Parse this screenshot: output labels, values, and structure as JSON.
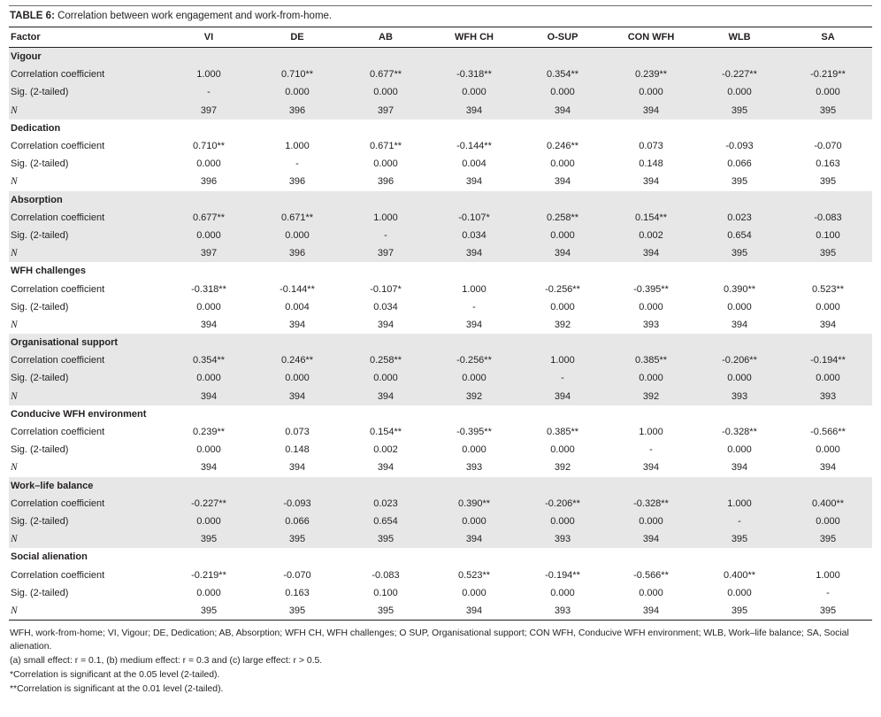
{
  "table": {
    "label": "TABLE 6:",
    "title": "Correlation between work engagement and work-from-home.",
    "columns": [
      "Factor",
      "VI",
      "DE",
      "AB",
      "WFH CH",
      "O-SUP",
      "CON WFH",
      "WLB",
      "SA"
    ],
    "sections": [
      {
        "name": "Vigour",
        "shaded": true,
        "rows": [
          {
            "label": "Correlation coefficient",
            "values": [
              "1.000",
              "0.710**",
              "0.677**",
              "-0.318**",
              "0.354**",
              "0.239**",
              "-0.227**",
              "-0.219**"
            ]
          },
          {
            "label": "Sig. (2-tailed)",
            "values": [
              "-",
              "0.000",
              "0.000",
              "0.000",
              "0.000",
              "0.000",
              "0.000",
              "0.000"
            ]
          },
          {
            "label": "N",
            "values": [
              "397",
              "396",
              "397",
              "394",
              "394",
              "394",
              "395",
              "395"
            ]
          }
        ]
      },
      {
        "name": "Dedication",
        "shaded": false,
        "rows": [
          {
            "label": "Correlation coefficient",
            "values": [
              "0.710**",
              "1.000",
              "0.671**",
              "-0.144**",
              "0.246**",
              "0.073",
              "-0.093",
              "-0.070"
            ]
          },
          {
            "label": "Sig. (2-tailed)",
            "values": [
              "0.000",
              "-",
              "0.000",
              "0.004",
              "0.000",
              "0.148",
              "0.066",
              "0.163"
            ]
          },
          {
            "label": "N",
            "values": [
              "396",
              "396",
              "396",
              "394",
              "394",
              "394",
              "395",
              "395"
            ]
          }
        ]
      },
      {
        "name": "Absorption",
        "shaded": true,
        "rows": [
          {
            "label": "Correlation coefficient",
            "values": [
              "0.677**",
              "0.671**",
              "1.000",
              "-0.107*",
              "0.258**",
              "0.154**",
              "0.023",
              "-0.083"
            ]
          },
          {
            "label": "Sig. (2-tailed)",
            "values": [
              "0.000",
              "0.000",
              "-",
              "0.034",
              "0.000",
              "0.002",
              "0.654",
              "0.100"
            ]
          },
          {
            "label": "N",
            "values": [
              "397",
              "396",
              "397",
              "394",
              "394",
              "394",
              "395",
              "395"
            ]
          }
        ]
      },
      {
        "name": "WFH challenges",
        "shaded": false,
        "rows": [
          {
            "label": "Correlation coefficient",
            "values": [
              "-0.318**",
              "-0.144**",
              "-0.107*",
              "1.000",
              "-0.256**",
              "-0.395**",
              "0.390**",
              "0.523**"
            ]
          },
          {
            "label": "Sig. (2-tailed)",
            "values": [
              "0.000",
              "0.004",
              "0.034",
              "-",
              "0.000",
              "0.000",
              "0.000",
              "0.000"
            ]
          },
          {
            "label": "N",
            "values": [
              "394",
              "394",
              "394",
              "394",
              "392",
              "393",
              "394",
              "394"
            ]
          }
        ]
      },
      {
        "name": "Organisational support",
        "shaded": true,
        "rows": [
          {
            "label": "Correlation coefficient",
            "values": [
              "0.354**",
              "0.246**",
              "0.258**",
              "-0.256**",
              "1.000",
              "0.385**",
              "-0.206**",
              "-0.194**"
            ]
          },
          {
            "label": "Sig. (2-tailed)",
            "values": [
              "0.000",
              "0.000",
              "0.000",
              "0.000",
              "-",
              "0.000",
              "0.000",
              "0.000"
            ]
          },
          {
            "label": "N",
            "values": [
              "394",
              "394",
              "394",
              "392",
              "394",
              "392",
              "393",
              "393"
            ]
          }
        ]
      },
      {
        "name": "Conducive WFH environment",
        "shaded": false,
        "rows": [
          {
            "label": "Correlation coefficient",
            "values": [
              "0.239**",
              "0.073",
              "0.154**",
              "-0.395**",
              "0.385**",
              "1.000",
              "-0.328**",
              "-0.566**"
            ]
          },
          {
            "label": "Sig. (2-tailed)",
            "values": [
              "0.000",
              "0.148",
              "0.002",
              "0.000",
              "0.000",
              "-",
              "0.000",
              "0.000"
            ]
          },
          {
            "label": "N",
            "values": [
              "394",
              "394",
              "394",
              "393",
              "392",
              "394",
              "394",
              "394"
            ]
          }
        ]
      },
      {
        "name": "Work–life balance",
        "shaded": true,
        "rows": [
          {
            "label": "Correlation coefficient",
            "values": [
              "-0.227**",
              "-0.093",
              "0.023",
              "0.390**",
              "-0.206**",
              "-0.328**",
              "1.000",
              "0.400**"
            ]
          },
          {
            "label": "Sig. (2-tailed)",
            "values": [
              "0.000",
              "0.066",
              "0.654",
              "0.000",
              "0.000",
              "0.000",
              "-",
              "0.000"
            ]
          },
          {
            "label": "N",
            "values": [
              "395",
              "395",
              "395",
              "394",
              "393",
              "394",
              "395",
              "395"
            ]
          }
        ]
      },
      {
        "name": "Social alienation",
        "shaded": false,
        "rows": [
          {
            "label": "Correlation coefficient",
            "values": [
              "-0.219**",
              "-0.070",
              "-0.083",
              "0.523**",
              "-0.194**",
              "-0.566**",
              "0.400**",
              "1.000"
            ]
          },
          {
            "label": "Sig. (2-tailed)",
            "values": [
              "0.000",
              "0.163",
              "0.100",
              "0.000",
              "0.000",
              "0.000",
              "0.000",
              "-"
            ]
          },
          {
            "label": "N",
            "values": [
              "395",
              "395",
              "395",
              "394",
              "393",
              "394",
              "395",
              "395"
            ]
          }
        ]
      }
    ],
    "footnotes": [
      "WFH, work-from-home; VI, Vigour; DE, Dedication; AB, Absorption; WFH CH, WFH challenges; O SUP, Organisational support; CON WFH, Conducive WFH environment; WLB, Work–life balance; SA, Social alienation.",
      "(a) small effect: r = 0.1, (b) medium effect: r = 0.3 and (c) large effect: r > 0.5.",
      "*Correlation is significant at the 0.05 level (2-tailed).",
      "**Correlation is significant at the 0.01 level (2-tailed)."
    ],
    "shaded_color": "#e7e7e7"
  }
}
